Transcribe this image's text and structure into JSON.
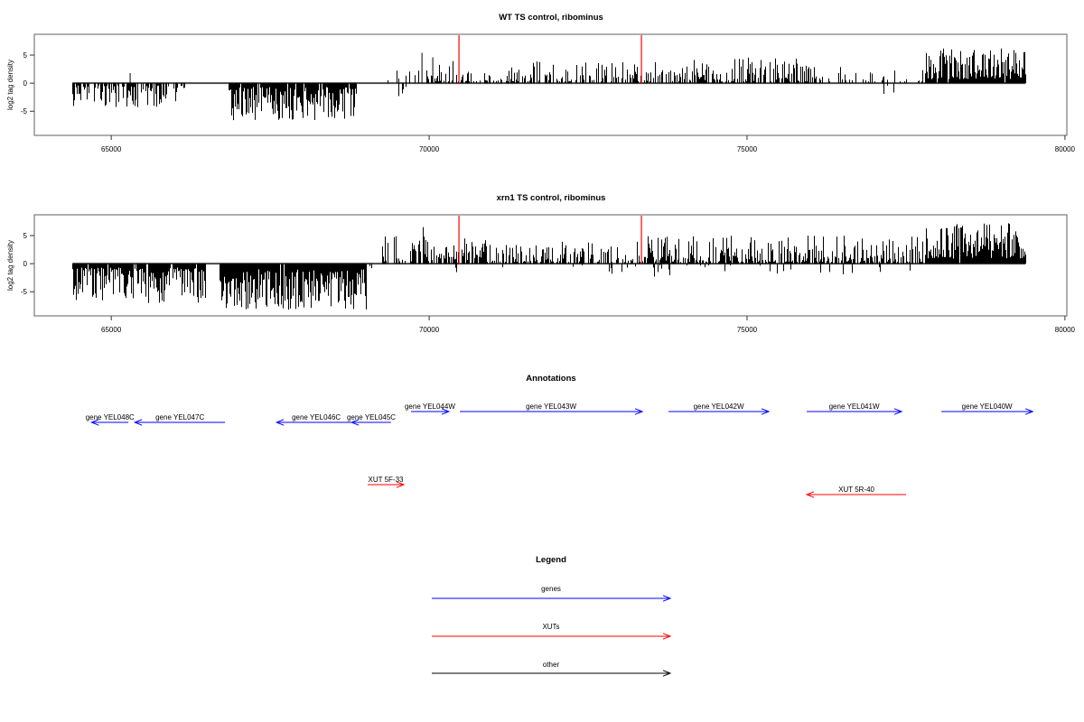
{
  "figure": {
    "background": "#ffffff"
  },
  "colors": {
    "gene": "#0000ff",
    "xut": "#ff0000",
    "other": "#000000",
    "bars": "#000000",
    "marker": "#ff0000",
    "axis_box": "#7a7a7a",
    "baseline": "#4a4a4a"
  },
  "chart_data": [
    {
      "type": "bar",
      "title": "WT TS control, ribominus",
      "ylabel": "log2 tag density",
      "xlabel": "",
      "xlim": [
        63790,
        80030
      ],
      "ylim": [
        -9.3,
        8.7
      ],
      "xticks": [
        65000,
        70000,
        75000,
        80000
      ],
      "yticks": [
        -5,
        0,
        5
      ],
      "bar_color": "#000000",
      "marker_lines_x": [
        70469,
        73339
      ],
      "marker_color": "#ff0000",
      "baseline_extent": [
        64390,
        79380
      ],
      "regions_format": [
        "x_start",
        "x_end",
        "sign",
        "bars_per_px",
        "mag_min",
        "mag_max",
        "skew"
      ],
      "regions": [
        [
          64390,
          66150,
          -1,
          0.6,
          0.4,
          4.3,
          1.7
        ],
        [
          66850,
          68850,
          -1,
          0.92,
          0.7,
          6.6,
          1.5
        ],
        [
          69350,
          69960,
          1,
          0.3,
          0.4,
          3.2,
          2.0
        ],
        [
          69470,
          69650,
          -1,
          0.18,
          0.5,
          2.6,
          1.5
        ],
        [
          69960,
          73330,
          1,
          0.5,
          0.3,
          4.0,
          2.1
        ],
        [
          73380,
          76080,
          1,
          0.66,
          0.3,
          4.6,
          1.9
        ],
        [
          76080,
          77760,
          1,
          0.3,
          0.3,
          3.0,
          2.0
        ],
        [
          76950,
          77500,
          -1,
          0.14,
          0.4,
          2.0,
          1.6
        ],
        [
          77800,
          79380,
          1,
          0.96,
          0.7,
          6.2,
          1.5
        ]
      ],
      "spikes": [
        [
          65290,
          1.8
        ],
        [
          69880,
          5.4
        ],
        [
          70050,
          4.6
        ]
      ]
    },
    {
      "type": "bar",
      "title": "xrn1 TS control, ribominus",
      "ylabel": "log2 tag density",
      "xlabel": "",
      "xlim": [
        63790,
        80030
      ],
      "ylim": [
        -9.3,
        8.7
      ],
      "xticks": [
        65000,
        70000,
        75000,
        80000
      ],
      "yticks": [
        -5,
        0,
        5
      ],
      "bar_color": "#000000",
      "marker_lines_x": [
        70469,
        73339
      ],
      "marker_color": "#ff0000",
      "baseline_extent": [
        64390,
        79380
      ],
      "regions_format": [
        "x_start",
        "x_end",
        "sign",
        "bars_per_px",
        "mag_min",
        "mag_max",
        "skew"
      ],
      "regions": [
        [
          64390,
          66480,
          -1,
          0.93,
          0.7,
          7.0,
          1.45
        ],
        [
          66700,
          69000,
          -1,
          0.97,
          1.0,
          8.2,
          1.3
        ],
        [
          69060,
          69260,
          -1,
          0.12,
          0.3,
          1.2,
          1.5
        ],
        [
          69260,
          70150,
          1,
          0.55,
          0.4,
          5.0,
          2.0
        ],
        [
          70150,
          70900,
          1,
          0.8,
          0.6,
          4.6,
          1.8
        ],
        [
          70900,
          73340,
          1,
          0.58,
          0.3,
          4.0,
          2.0
        ],
        [
          70300,
          73300,
          -1,
          0.05,
          0.3,
          1.8,
          1.6
        ],
        [
          73340,
          77760,
          1,
          0.72,
          0.3,
          5.0,
          1.9
        ],
        [
          73400,
          77700,
          -1,
          0.07,
          0.3,
          2.4,
          1.6
        ],
        [
          77800,
          79380,
          1,
          0.97,
          0.9,
          7.2,
          1.4
        ]
      ],
      "spikes": [
        [
          69900,
          6.5
        ],
        [
          69940,
          4.2
        ]
      ]
    }
  ],
  "annotations": {
    "title": "Annotations",
    "gene_color": "#0000ff",
    "xut_color": "#ff0000",
    "genes": [
      {
        "label": "gene YEL048C",
        "start": 64690,
        "end": 65270,
        "strand": "-"
      },
      {
        "label": "gene YEL047C",
        "start": 65370,
        "end": 66790,
        "strand": "-"
      },
      {
        "label": "gene YEL046C",
        "start": 67600,
        "end": 68850,
        "strand": "-"
      },
      {
        "label": "gene YEL045C",
        "start": 68780,
        "end": 69400,
        "strand": "-"
      },
      {
        "label": "gene YEL044W",
        "start": 69715,
        "end": 70310,
        "strand": "+"
      },
      {
        "label": "gene YEL043W",
        "start": 70483,
        "end": 73353,
        "strand": "+"
      },
      {
        "label": "gene YEL042W",
        "start": 73765,
        "end": 75342,
        "strand": "+"
      },
      {
        "label": "gene YEL041W",
        "start": 75939,
        "end": 77431,
        "strand": "+"
      },
      {
        "label": "gene YEL040W",
        "start": 78057,
        "end": 79492,
        "strand": "+"
      }
    ],
    "xuts": [
      {
        "label": "XUT 5F-33",
        "start": 69033,
        "end": 69601,
        "strand": "+"
      },
      {
        "label": "XUT 5R-40",
        "start": 75939,
        "end": 77502,
        "strand": "-"
      }
    ]
  },
  "legend": {
    "title": "Legend",
    "items": [
      {
        "label": "genes",
        "color": "#0000ff"
      },
      {
        "label": "XUTs",
        "color": "#ff0000"
      },
      {
        "label": "other",
        "color": "#000000"
      }
    ]
  }
}
